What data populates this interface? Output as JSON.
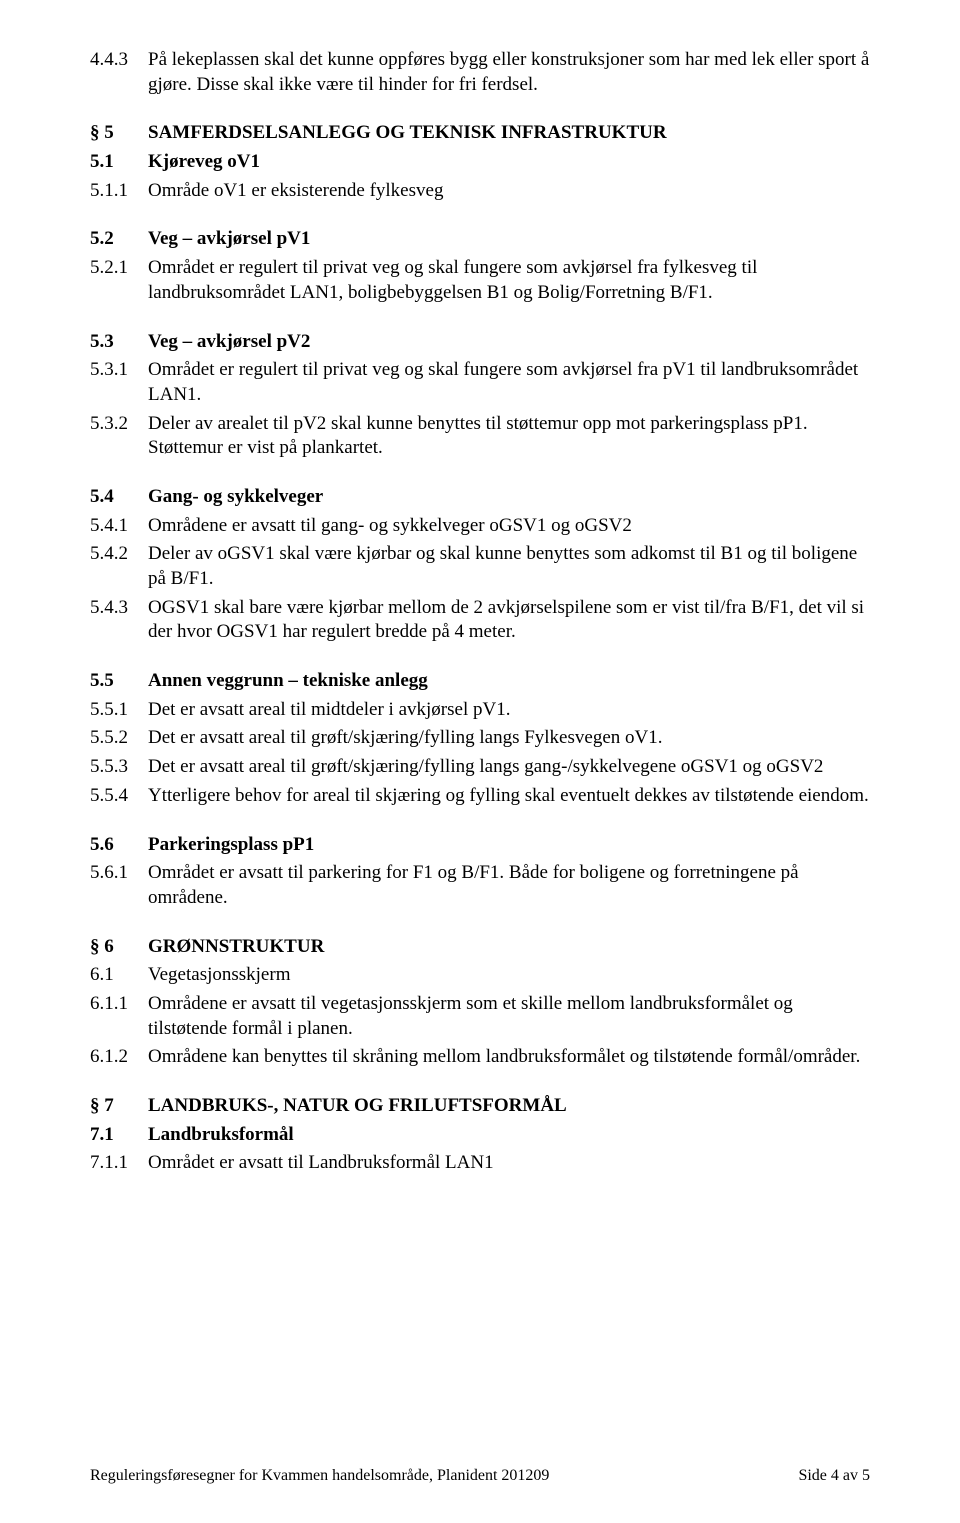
{
  "p443": {
    "num": "4.4.3",
    "text": "På lekeplassen skal det kunne oppføres bygg eller konstruksjoner som har med lek eller sport å gjøre. Disse skal ikke være til hinder for fri ferdsel."
  },
  "p5": {
    "num": "§ 5",
    "text": "SAMFERDSELSANLEGG OG TEKNISK INFRASTRUKTUR"
  },
  "p51": {
    "num": "5.1",
    "text": "Kjøreveg oV1"
  },
  "p511": {
    "num": "5.1.1",
    "text": "Område oV1 er eksisterende fylkesveg"
  },
  "p52": {
    "num": "5.2",
    "text": "Veg – avkjørsel pV1"
  },
  "p521": {
    "num": "5.2.1",
    "text": "Området er regulert til privat veg og skal fungere som avkjørsel fra fylkesveg til landbruksområdet LAN1, boligbebyggelsen B1 og Bolig/Forretning B/F1."
  },
  "p53": {
    "num": "5.3",
    "text": "Veg – avkjørsel pV2"
  },
  "p531": {
    "num": "5.3.1",
    "text": "Området er regulert til privat veg og skal fungere som avkjørsel fra pV1 til landbruksområdet LAN1."
  },
  "p532": {
    "num": "5.3.2",
    "text": "Deler av arealet til pV2 skal kunne benyttes til støttemur opp mot parkeringsplass pP1. Støttemur er vist på plankartet."
  },
  "p54": {
    "num": "5.4",
    "text": "Gang- og sykkelveger"
  },
  "p541": {
    "num": "5.4.1",
    "text": "Områdene er avsatt til gang- og sykkelveger oGSV1 og oGSV2"
  },
  "p542": {
    "num": "5.4.2",
    "text": "Deler av oGSV1 skal være kjørbar og skal kunne benyttes som adkomst til B1 og til boligene på B/F1."
  },
  "p543": {
    "num": "5.4.3",
    "text": "OGSV1 skal bare være kjørbar mellom de 2 avkjørselspilene som er vist til/fra B/F1, det vil si der hvor OGSV1 har regulert bredde på 4 meter."
  },
  "p55": {
    "num": "5.5",
    "text": "Annen veggrunn – tekniske anlegg"
  },
  "p551": {
    "num": "5.5.1",
    "text": "Det er avsatt areal til midtdeler i avkjørsel pV1."
  },
  "p552": {
    "num": "5.5.2",
    "text": "Det er avsatt areal til grøft/skjæring/fylling langs Fylkesvegen oV1."
  },
  "p553": {
    "num": "5.5.3",
    "text": "Det er avsatt areal til grøft/skjæring/fylling langs gang-/sykkelvegene oGSV1 og oGSV2"
  },
  "p554": {
    "num": "5.5.4",
    "text": "Ytterligere behov for areal til skjæring og fylling skal eventuelt dekkes av tilstøtende eiendom."
  },
  "p56": {
    "num": "5.6",
    "text": "Parkeringsplass pP1"
  },
  "p561": {
    "num": "5.6.1",
    "text": "Området er avsatt til parkering for F1 og B/F1. Både for boligene og forretningene på områdene."
  },
  "p6": {
    "num": "§ 6",
    "text": "GRØNNSTRUKTUR"
  },
  "p61": {
    "num": "6.1",
    "text": "Vegetasjonsskjerm"
  },
  "p611": {
    "num": "6.1.1",
    "text": "Områdene er avsatt til vegetasjonsskjerm som et skille mellom landbruksformålet og tilstøtende formål i planen."
  },
  "p612": {
    "num": "6.1.2",
    "text": "Områdene kan benyttes til skråning mellom landbruksformålet og tilstøtende formål/områder."
  },
  "p7": {
    "num": "§ 7",
    "text": "LANDBRUKS-, NATUR OG FRILUFTSFORMÅL"
  },
  "p71": {
    "num": "7.1",
    "text": "Landbruksformål"
  },
  "p711": {
    "num": "7.1.1",
    "text": "Området er avsatt til Landbruksformål LAN1"
  },
  "footer": {
    "left": "Reguleringsføresegner for Kvammen handelsområde, Planident 201209",
    "right": "Side 4 av 5"
  }
}
